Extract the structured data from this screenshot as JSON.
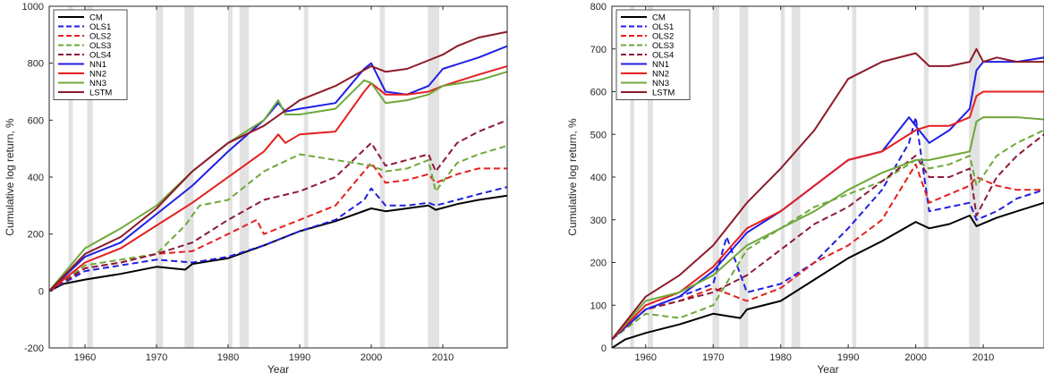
{
  "chart_data": [
    {
      "type": "line",
      "xlabel": "Year",
      "ylabel": "Cumulative log return, %",
      "xlim": [
        1955,
        2019
      ],
      "ylim": [
        -200,
        1000
      ],
      "xticks": [
        1960,
        1970,
        1980,
        1990,
        2000,
        2010
      ],
      "yticks": [
        -200,
        0,
        200,
        400,
        600,
        800,
        1000
      ],
      "grid": false,
      "legend_location": "top-left",
      "shaded_periods": [
        [
          1957.7,
          1958.3
        ],
        [
          1960.3,
          1961.1
        ],
        [
          1969.9,
          1970.9
        ],
        [
          1973.9,
          1975.2
        ],
        [
          1980.0,
          1980.6
        ],
        [
          1981.6,
          1982.9
        ],
        [
          1990.6,
          1991.2
        ],
        [
          2001.2,
          2001.9
        ],
        [
          2007.9,
          2009.5
        ]
      ],
      "series": [
        {
          "name": "CM",
          "color": "#000000",
          "style": "solid",
          "x": [
            1955,
            1957,
            1960,
            1965,
            1970,
            1974,
            1975,
            1980,
            1985,
            1990,
            1995,
            2000,
            2002,
            2005,
            2008,
            2009,
            2012,
            2015,
            2019
          ],
          "values": [
            0,
            25,
            40,
            60,
            85,
            75,
            95,
            115,
            160,
            210,
            245,
            290,
            280,
            290,
            300,
            285,
            305,
            320,
            335
          ]
        },
        {
          "name": "OLS1",
          "color": "#1f1fe0",
          "style": "dashed",
          "x": [
            1955,
            1960,
            1965,
            1970,
            1975,
            1980,
            1985,
            1990,
            1995,
            1999,
            2000,
            2002,
            2005,
            2008,
            2009,
            2012,
            2015,
            2019
          ],
          "values": [
            0,
            70,
            90,
            110,
            100,
            120,
            160,
            210,
            250,
            320,
            360,
            300,
            300,
            310,
            300,
            320,
            340,
            365
          ]
        },
        {
          "name": "OLS2",
          "color": "#e61f1f",
          "style": "dashed",
          "x": [
            1955,
            1960,
            1965,
            1970,
            1975,
            1980,
            1984,
            1985,
            1990,
            1995,
            2000,
            2002,
            2005,
            2008,
            2009,
            2012,
            2015,
            2019
          ],
          "values": [
            0,
            80,
            100,
            130,
            140,
            200,
            250,
            200,
            250,
            300,
            450,
            380,
            390,
            410,
            380,
            410,
            430,
            430
          ]
        },
        {
          "name": "OLS3",
          "color": "#6fa83a",
          "style": "dashed",
          "x": [
            1955,
            1960,
            1965,
            1970,
            1974,
            1976,
            1980,
            1985,
            1990,
            1995,
            2000,
            2002,
            2005,
            2008,
            2009,
            2012,
            2015,
            2019
          ],
          "values": [
            0,
            90,
            110,
            130,
            230,
            300,
            320,
            420,
            480,
            460,
            440,
            420,
            430,
            460,
            350,
            450,
            480,
            510
          ]
        },
        {
          "name": "OLS4",
          "color": "#8c1a3a",
          "style": "dashed",
          "x": [
            1955,
            1960,
            1965,
            1970,
            1975,
            1980,
            1985,
            1990,
            1995,
            2000,
            2002,
            2005,
            2008,
            2009,
            2012,
            2015,
            2019
          ],
          "values": [
            0,
            80,
            100,
            130,
            170,
            250,
            320,
            350,
            400,
            520,
            440,
            460,
            480,
            420,
            520,
            560,
            600
          ]
        },
        {
          "name": "NN1",
          "color": "#1f1fe6",
          "style": "solid",
          "x": [
            1955,
            1960,
            1965,
            1970,
            1975,
            1980,
            1985,
            1987,
            1988,
            1990,
            1995,
            1999,
            2000,
            2002,
            2005,
            2008,
            2010,
            2015,
            2019
          ],
          "values": [
            0,
            120,
            170,
            270,
            370,
            490,
            600,
            660,
            630,
            640,
            660,
            780,
            800,
            700,
            690,
            720,
            780,
            820,
            860
          ]
        },
        {
          "name": "NN2",
          "color": "#e61f1f",
          "style": "solid",
          "x": [
            1955,
            1960,
            1965,
            1970,
            1975,
            1980,
            1985,
            1987,
            1988,
            1990,
            1995,
            1999,
            2000,
            2002,
            2005,
            2008,
            2010,
            2015,
            2019
          ],
          "values": [
            0,
            100,
            150,
            230,
            310,
            400,
            490,
            550,
            520,
            550,
            560,
            700,
            730,
            690,
            690,
            700,
            720,
            760,
            790
          ]
        },
        {
          "name": "NN3",
          "color": "#6fa83a",
          "style": "solid",
          "x": [
            1955,
            1960,
            1965,
            1970,
            1975,
            1980,
            1985,
            1987,
            1988,
            1990,
            1995,
            1999,
            2000,
            2002,
            2005,
            2008,
            2010,
            2015,
            2019
          ],
          "values": [
            0,
            150,
            220,
            300,
            420,
            520,
            600,
            670,
            620,
            620,
            640,
            740,
            730,
            660,
            670,
            690,
            720,
            740,
            770
          ]
        },
        {
          "name": "LSTM",
          "color": "#8c1a2a",
          "style": "solid",
          "x": [
            1955,
            1960,
            1965,
            1970,
            1975,
            1980,
            1985,
            1990,
            1995,
            2000,
            2002,
            2005,
            2008,
            2010,
            2012,
            2015,
            2019
          ],
          "values": [
            0,
            130,
            190,
            290,
            420,
            520,
            580,
            670,
            720,
            790,
            770,
            780,
            810,
            830,
            860,
            890,
            910
          ]
        }
      ]
    },
    {
      "type": "line",
      "xlabel": "Year",
      "ylabel": "Cumulative log return, %",
      "xlim": [
        1955,
        2019
      ],
      "ylim": [
        0,
        800
      ],
      "xticks": [
        1960,
        1970,
        1980,
        1990,
        2000,
        2010
      ],
      "yticks": [
        0,
        100,
        200,
        300,
        400,
        500,
        600,
        700,
        800
      ],
      "grid": false,
      "legend_location": "top-left",
      "shaded_periods": [
        [
          1957.7,
          1958.3
        ],
        [
          1960.3,
          1961.1
        ],
        [
          1969.9,
          1970.9
        ],
        [
          1973.9,
          1975.2
        ],
        [
          1980.0,
          1980.6
        ],
        [
          1981.6,
          1982.9
        ],
        [
          1990.6,
          1991.2
        ],
        [
          2001.2,
          2001.9
        ],
        [
          2007.9,
          2009.5
        ]
      ],
      "series": [
        {
          "name": "CM",
          "color": "#000000",
          "style": "solid",
          "x": [
            1955,
            1957,
            1960,
            1965,
            1970,
            1974,
            1975,
            1980,
            1985,
            1990,
            1995,
            2000,
            2002,
            2005,
            2008,
            2009,
            2012,
            2015,
            2019
          ],
          "values": [
            0,
            20,
            35,
            55,
            80,
            70,
            90,
            110,
            160,
            210,
            250,
            295,
            280,
            290,
            310,
            285,
            305,
            320,
            340
          ]
        },
        {
          "name": "OLS1",
          "color": "#1f1fe0",
          "style": "dashed",
          "x": [
            1955,
            1960,
            1965,
            1970,
            1972,
            1975,
            1980,
            1985,
            1990,
            1995,
            1999,
            2000,
            2002,
            2005,
            2008,
            2009,
            2012,
            2015,
            2019
          ],
          "values": [
            20,
            90,
            120,
            150,
            260,
            130,
            150,
            200,
            280,
            370,
            480,
            540,
            320,
            330,
            340,
            300,
            320,
            350,
            370
          ]
        },
        {
          "name": "OLS2",
          "color": "#e61f1f",
          "style": "dashed",
          "x": [
            1955,
            1960,
            1965,
            1970,
            1975,
            1980,
            1985,
            1990,
            1995,
            2000,
            2002,
            2005,
            2008,
            2009,
            2012,
            2015,
            2019
          ],
          "values": [
            20,
            90,
            110,
            140,
            110,
            140,
            200,
            240,
            300,
            430,
            340,
            360,
            380,
            400,
            380,
            370,
            370
          ]
        },
        {
          "name": "OLS3",
          "color": "#6fa83a",
          "style": "dashed",
          "x": [
            1955,
            1960,
            1965,
            1970,
            1975,
            1980,
            1985,
            1990,
            1995,
            2000,
            2002,
            2005,
            2008,
            2009,
            2012,
            2015,
            2019
          ],
          "values": [
            20,
            80,
            70,
            100,
            230,
            280,
            330,
            360,
            390,
            440,
            420,
            430,
            450,
            380,
            450,
            480,
            510
          ]
        },
        {
          "name": "OLS4",
          "color": "#8c1a3a",
          "style": "dashed",
          "x": [
            1955,
            1960,
            1965,
            1970,
            1975,
            1980,
            1985,
            1990,
            1995,
            2000,
            2002,
            2005,
            2008,
            2009,
            2012,
            2015,
            2019
          ],
          "values": [
            20,
            90,
            110,
            130,
            170,
            230,
            290,
            330,
            390,
            450,
            400,
            400,
            420,
            310,
            400,
            450,
            500
          ]
        },
        {
          "name": "NN1",
          "color": "#1f1fe6",
          "style": "solid",
          "x": [
            1955,
            1960,
            1965,
            1970,
            1975,
            1980,
            1985,
            1990,
            1995,
            1999,
            2000,
            2002,
            2005,
            2008,
            2009,
            2010,
            2012,
            2015,
            2019
          ],
          "values": [
            20,
            90,
            120,
            180,
            270,
            320,
            380,
            440,
            460,
            540,
            520,
            480,
            510,
            560,
            650,
            670,
            670,
            670,
            680
          ]
        },
        {
          "name": "NN2",
          "color": "#e61f1f",
          "style": "solid",
          "x": [
            1955,
            1960,
            1965,
            1970,
            1975,
            1980,
            1985,
            1990,
            1995,
            2000,
            2002,
            2005,
            2008,
            2009,
            2010,
            2012,
            2015,
            2019
          ],
          "values": [
            20,
            100,
            130,
            190,
            280,
            320,
            380,
            440,
            460,
            510,
            520,
            520,
            540,
            590,
            600,
            600,
            600,
            600
          ]
        },
        {
          "name": "NN3",
          "color": "#6fa83a",
          "style": "solid",
          "x": [
            1955,
            1960,
            1965,
            1970,
            1975,
            1980,
            1985,
            1990,
            1995,
            2000,
            2002,
            2005,
            2008,
            2009,
            2010,
            2012,
            2015,
            2019
          ],
          "values": [
            20,
            110,
            130,
            170,
            240,
            280,
            320,
            370,
            410,
            440,
            440,
            450,
            460,
            530,
            540,
            540,
            540,
            535
          ]
        },
        {
          "name": "LSTM",
          "color": "#8c1a2a",
          "style": "solid",
          "x": [
            1955,
            1960,
            1965,
            1970,
            1975,
            1980,
            1985,
            1990,
            1995,
            2000,
            2002,
            2005,
            2008,
            2009,
            2010,
            2012,
            2015,
            2019
          ],
          "values": [
            20,
            120,
            170,
            240,
            340,
            420,
            510,
            630,
            670,
            690,
            660,
            660,
            670,
            700,
            670,
            680,
            670,
            670
          ]
        }
      ]
    }
  ]
}
